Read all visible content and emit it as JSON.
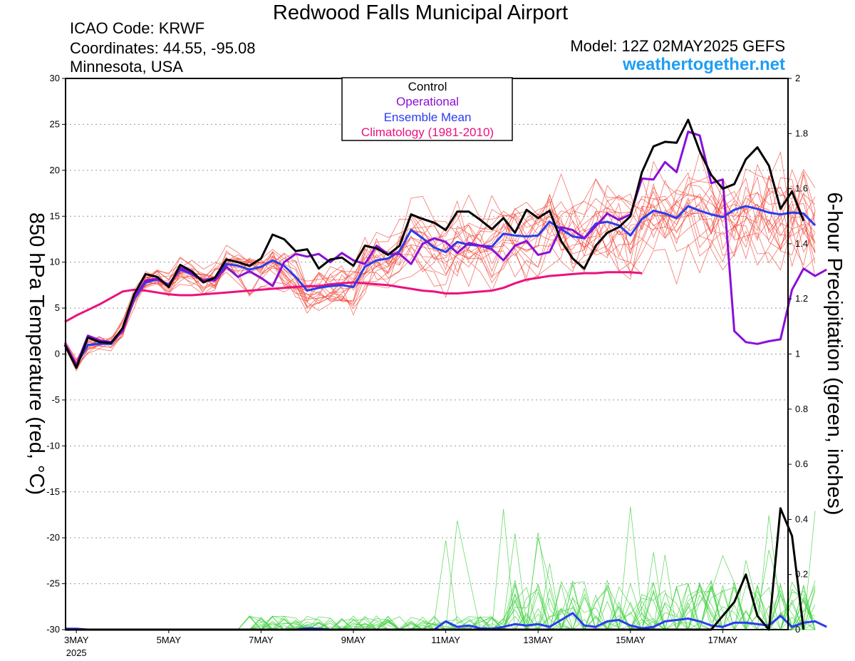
{
  "header": {
    "title": "Redwood Falls Municipal Airport",
    "icao": "ICAO Code: KRWF",
    "coordinates": "Coordinates: 44.55, -95.08",
    "location": "Minnesota, USA",
    "model": "Model: 12Z 02MAY2025 GEFS",
    "site": "weathertogether.net"
  },
  "colors": {
    "control": "#000000",
    "operational": "#8a0fd6",
    "ensemble_mean": "#2a3cf0",
    "climatology": "#ea117f",
    "members_temp": "#f0473a",
    "members_precip": "#44d244",
    "site": "#1e9ef5"
  },
  "chart_data": {
    "type": "line",
    "title": "Redwood Falls Municipal Airport",
    "ylabel": "850 hPa Temperature (red, °C)",
    "y2label": "6-hour Precipitation (green, inches)",
    "ylim": [
      -30,
      30
    ],
    "y2lim": [
      0,
      2
    ],
    "grid": true,
    "legend_position": "top-center",
    "x_start": "2025-05-02 18Z",
    "x_step_hours": 6,
    "x_ticks": [
      {
        "t": 1,
        "label": "3MAY",
        "sub": "2025"
      },
      {
        "t": 9,
        "label": "5MAY"
      },
      {
        "t": 17,
        "label": "7MAY"
      },
      {
        "t": 25,
        "label": "9MAY"
      },
      {
        "t": 33,
        "label": "11MAY"
      },
      {
        "t": 41,
        "label": "13MAY"
      },
      {
        "t": 49,
        "label": "15MAY"
      },
      {
        "t": 57,
        "label": "17MAY"
      }
    ],
    "y_ticks": [
      30,
      25,
      20,
      15,
      10,
      5,
      0,
      -5,
      -10,
      -15,
      -20,
      -25,
      -30
    ],
    "y2_ticks": [
      2,
      1.8,
      1.6,
      1.4,
      1.2,
      1,
      0.8,
      0.6,
      0.4,
      0.2,
      0
    ],
    "legend": [
      "Control",
      "Operational",
      "Ensemble Mean",
      "Climatology (1981-2010)"
    ],
    "series": [
      {
        "name": "Control",
        "axis": "temp",
        "values": [
          1.0,
          -1.5,
          1.8,
          1.3,
          1.2,
          2.8,
          6.5,
          8.7,
          8.4,
          7.3,
          9.7,
          9.0,
          7.8,
          8.3,
          10.3,
          10.0,
          9.6,
          10.4,
          13.0,
          12.5,
          11.2,
          11.4,
          9.3,
          10.3,
          10.5,
          9.6,
          11.8,
          11.5,
          10.8,
          11.8,
          15.2,
          14.7,
          14.3,
          13.5,
          15.5,
          15.5,
          14.6,
          13.6,
          14.8,
          13.2,
          15.7,
          14.8,
          15.6,
          12.3,
          10.4,
          9.3,
          11.8,
          13.2,
          13.8,
          15.0,
          19.8,
          22.6,
          23.1,
          23.0,
          25.5,
          22.1,
          19.5,
          18.0,
          18.5,
          21.2,
          22.5,
          20.5,
          15.8,
          17.7,
          14.5
        ]
      },
      {
        "name": "Operational",
        "axis": "temp",
        "values": [
          1.2,
          -1.2,
          2.0,
          1.5,
          1.3,
          2.5,
          6.2,
          8.0,
          8.2,
          7.5,
          9.4,
          8.8,
          8.0,
          8.0,
          9.5,
          8.4,
          9.0,
          8.3,
          7.4,
          10.0,
          10.9,
          10.6,
          10.9,
          10.0,
          11.0,
          10.2,
          9.8,
          11.8,
          10.9,
          10.9,
          9.8,
          12.0,
          12.6,
          12.2,
          11.0,
          12.1,
          11.8,
          11.4,
          10.2,
          11.8,
          12.3,
          10.8,
          11.1,
          13.8,
          13.5,
          12.6,
          13.9,
          15.3,
          14.6,
          15.2,
          19.1,
          19.0,
          20.9,
          19.8,
          24.2,
          23.8,
          18.6,
          19.0,
          2.5,
          1.3,
          1.1,
          1.4,
          1.6,
          7.0,
          9.3,
          8.5,
          9.2
        ]
      },
      {
        "name": "Ensemble Mean",
        "axis": "temp",
        "values": [
          1.0,
          -1.2,
          1.0,
          1.1,
          1.1,
          2.6,
          6.0,
          7.8,
          8.1,
          7.6,
          9.2,
          8.7,
          8.0,
          8.3,
          9.8,
          9.6,
          9.2,
          9.5,
          10.2,
          9.6,
          8.4,
          6.9,
          7.2,
          7.4,
          7.5,
          7.3,
          9.5,
          10.2,
          10.4,
          11.2,
          13.5,
          12.6,
          11.6,
          11.1,
          12.2,
          11.9,
          11.8,
          11.7,
          13.1,
          12.9,
          12.8,
          12.9,
          14.4,
          13.6,
          12.8,
          12.6,
          14.2,
          14.4,
          14.0,
          12.9,
          14.7,
          15.6,
          15.3,
          14.8,
          16.1,
          15.6,
          15.2,
          14.9,
          15.7,
          16.1,
          15.8,
          15.4,
          15.2,
          15.4,
          15.3,
          14.0
        ]
      },
      {
        "name": "Climatology (1981-2010)",
        "axis": "temp",
        "values": [
          3.5,
          4.2,
          4.8,
          5.4,
          6.1,
          6.8,
          7.0,
          6.9,
          6.7,
          6.5,
          6.4,
          6.4,
          6.5,
          6.6,
          6.7,
          6.8,
          6.9,
          7.0,
          7.1,
          7.2,
          7.3,
          7.4,
          7.4,
          7.6,
          7.7,
          7.8,
          7.7,
          7.6,
          7.5,
          7.3,
          7.1,
          6.9,
          6.8,
          6.6,
          6.6,
          6.7,
          6.8,
          6.9,
          7.2,
          7.7,
          8.1,
          8.3,
          8.5,
          8.6,
          8.7,
          8.8,
          8.8,
          8.9,
          8.9,
          8.9,
          8.8
        ]
      },
      {
        "name": "Control",
        "axis": "precip",
        "values": [
          0,
          0,
          0,
          0,
          0,
          0,
          0,
          0,
          0,
          0,
          0,
          0,
          0,
          0,
          0,
          0,
          0,
          0,
          0,
          0,
          0,
          0,
          0,
          0,
          0,
          0,
          0,
          0,
          0,
          0,
          0,
          0,
          0,
          0,
          0,
          0,
          0,
          0,
          0,
          0,
          0,
          0,
          0,
          0,
          0,
          0,
          0,
          0,
          0,
          0,
          0,
          0,
          0,
          0,
          0,
          0,
          0,
          0.05,
          0.1,
          0.2,
          0.05,
          0,
          0.44,
          0.34,
          0
        ]
      },
      {
        "name": "Ensemble Mean",
        "axis": "precip",
        "values": [
          0.003,
          0.003,
          0,
          0,
          0,
          0,
          0,
          0,
          0,
          0,
          0,
          0,
          0,
          0,
          0,
          0,
          0,
          0,
          0,
          0,
          0,
          0.005,
          0.003,
          0,
          0,
          0,
          0,
          0,
          0,
          0,
          0,
          0,
          0,
          0.03,
          0.01,
          0.015,
          0.005,
          0.003,
          0.01,
          0.02,
          0.015,
          0.02,
          0.01,
          0.035,
          0.06,
          0.015,
          0.01,
          0.03,
          0.035,
          0.015,
          0.005,
          0.01,
          0.03,
          0.035,
          0.04,
          0.03,
          0.015,
          0.01,
          0.025,
          0.025,
          0.02,
          0.015,
          0.05,
          0.01,
          0.025,
          0.03,
          0.01
        ]
      }
    ]
  }
}
